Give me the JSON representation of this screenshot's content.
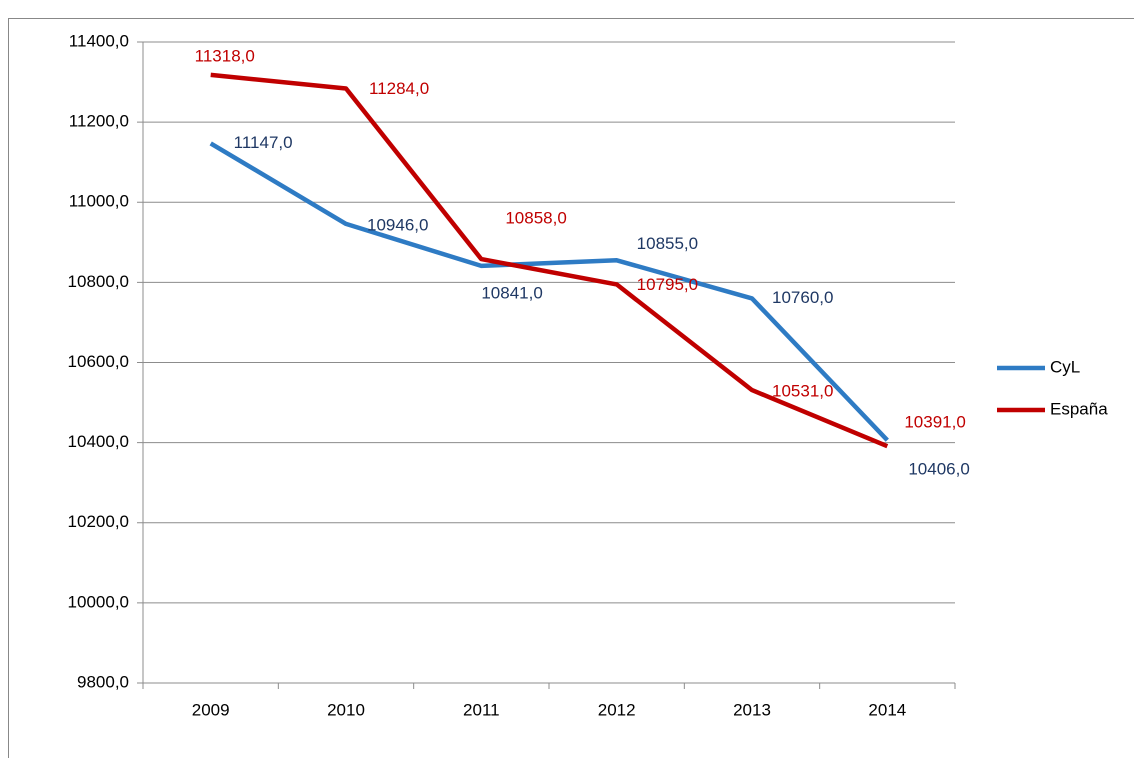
{
  "chart_data": {
    "type": "line",
    "categories": [
      "2009",
      "2010",
      "2011",
      "2012",
      "2013",
      "2014"
    ],
    "series": [
      {
        "name": "CyL",
        "color": "#2e7bc4",
        "label_color": "#1f3864",
        "values": [
          11147,
          10946,
          10841,
          10855,
          10760,
          10406
        ],
        "value_labels": [
          "11147,0",
          "10946,0",
          "10841,0",
          "10855,0",
          "10760,0",
          "10406,0"
        ]
      },
      {
        "name": "España",
        "color": "#c00000",
        "label_color": "#c00000",
        "values": [
          11318,
          11284,
          10858,
          10795,
          10531,
          10391
        ],
        "value_labels": [
          "11318,0",
          "11284,0",
          "10858,0",
          "10795,0",
          "10531,0",
          "10391,0"
        ]
      }
    ],
    "ylim": [
      9800,
      11400
    ],
    "yticks": [
      {
        "value": 9800,
        "label": "9800,0"
      },
      {
        "value": 10000,
        "label": "10000,0"
      },
      {
        "value": 10200,
        "label": "10200,0"
      },
      {
        "value": 10400,
        "label": "10400,0"
      },
      {
        "value": 10600,
        "label": "10600,0"
      },
      {
        "value": 10800,
        "label": "10800,0"
      },
      {
        "value": 11000,
        "label": "11000,0"
      },
      {
        "value": 11200,
        "label": "11200,0"
      },
      {
        "value": 11400,
        "label": "11400,0"
      }
    ],
    "grid": true,
    "legend": "right"
  }
}
